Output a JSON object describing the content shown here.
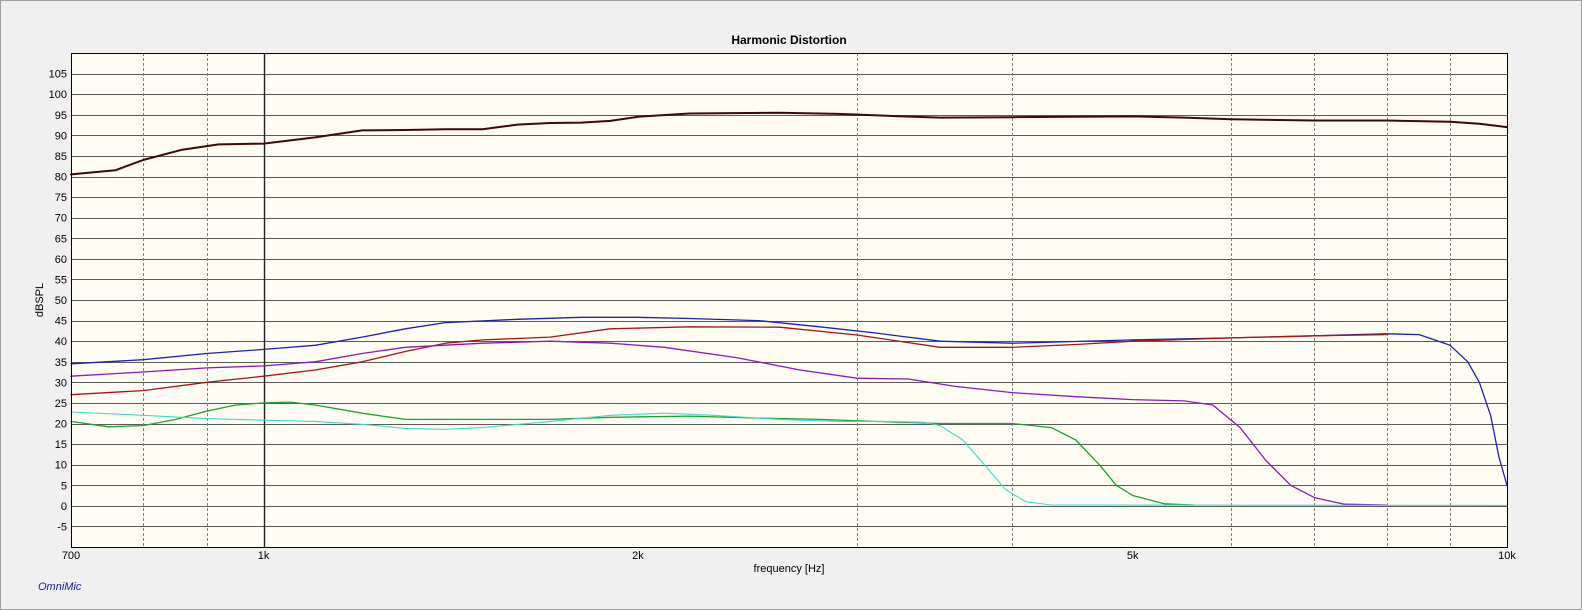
{
  "brand": "OmniMic",
  "chart_data": {
    "type": "line",
    "title": "Harmonic Distortion",
    "xlabel": "frequency [Hz]",
    "ylabel": "dBSPL",
    "xscale": "log",
    "xlim": [
      700,
      10000
    ],
    "ylim": [
      -10,
      110
    ],
    "yticks": [
      -5,
      0,
      5,
      10,
      15,
      20,
      25,
      30,
      35,
      40,
      45,
      50,
      55,
      60,
      65,
      70,
      75,
      80,
      85,
      90,
      95,
      100,
      105
    ],
    "xtick_labels": [
      {
        "value": 700,
        "label": "700"
      },
      {
        "value": 1000,
        "label": "1k"
      },
      {
        "value": 2000,
        "label": "2k"
      },
      {
        "value": 5000,
        "label": "5k"
      },
      {
        "value": 10000,
        "label": "10k"
      }
    ],
    "x_minor_grid": [
      800,
      900,
      3000,
      4000,
      6000,
      7000,
      8000,
      9000
    ],
    "x_major_grid": [
      1000
    ],
    "grid": true,
    "legend": "none",
    "series": [
      {
        "color": "#3a0a0a",
        "width": 2,
        "points": [
          [
            700,
            80.5
          ],
          [
            760,
            81.5
          ],
          [
            800,
            84
          ],
          [
            860,
            86.5
          ],
          [
            920,
            87.8
          ],
          [
            1000,
            88
          ],
          [
            1100,
            89.5
          ],
          [
            1200,
            91.2
          ],
          [
            1300,
            91.3
          ],
          [
            1400,
            91.5
          ],
          [
            1500,
            91.5
          ],
          [
            1600,
            92.6
          ],
          [
            1700,
            93
          ],
          [
            1800,
            93.1
          ],
          [
            1900,
            93.5
          ],
          [
            2000,
            94.5
          ],
          [
            2200,
            95.3
          ],
          [
            2600,
            95.5
          ],
          [
            2900,
            95.2
          ],
          [
            3200,
            94.7
          ],
          [
            3500,
            94.3
          ],
          [
            4000,
            94.4
          ],
          [
            5000,
            94.6
          ],
          [
            5500,
            94.3
          ],
          [
            6000,
            93.9
          ],
          [
            7000,
            93.6
          ],
          [
            8000,
            93.6
          ],
          [
            9000,
            93.3
          ],
          [
            9500,
            92.8
          ],
          [
            10000,
            92
          ]
        ]
      },
      {
        "color": "#2020a8",
        "width": 1.3,
        "points": [
          [
            700,
            34.5
          ],
          [
            800,
            35.5
          ],
          [
            900,
            37
          ],
          [
            1000,
            38
          ],
          [
            1100,
            39
          ],
          [
            1200,
            41
          ],
          [
            1300,
            43
          ],
          [
            1400,
            44.5
          ],
          [
            1600,
            45.3
          ],
          [
            1800,
            45.8
          ],
          [
            2000,
            45.8
          ],
          [
            2200,
            45.5
          ],
          [
            2500,
            45
          ],
          [
            2800,
            43.5
          ],
          [
            3100,
            42
          ],
          [
            3500,
            40
          ],
          [
            4000,
            39.5
          ],
          [
            5000,
            40.3
          ],
          [
            6000,
            40.8
          ],
          [
            7000,
            41.3
          ],
          [
            8000,
            41.8
          ],
          [
            8500,
            41.6
          ],
          [
            9000,
            39
          ],
          [
            9300,
            35
          ],
          [
            9500,
            30
          ],
          [
            9700,
            22
          ],
          [
            9850,
            12
          ],
          [
            10000,
            5
          ]
        ]
      },
      {
        "color": "#a01818",
        "width": 1.3,
        "points": [
          [
            700,
            27
          ],
          [
            800,
            28
          ],
          [
            900,
            30
          ],
          [
            1000,
            31.5
          ],
          [
            1100,
            33
          ],
          [
            1200,
            35
          ],
          [
            1300,
            37.5
          ],
          [
            1400,
            39.5
          ],
          [
            1500,
            40.3
          ],
          [
            1700,
            41
          ],
          [
            1900,
            43
          ],
          [
            2200,
            43.5
          ],
          [
            2600,
            43.4
          ],
          [
            3000,
            41.5
          ],
          [
            3500,
            38.5
          ],
          [
            4000,
            38.5
          ],
          [
            4500,
            39.2
          ],
          [
            5000,
            40
          ],
          [
            6000,
            40.8
          ],
          [
            7000,
            41.3
          ],
          [
            8000,
            41.6
          ]
        ]
      },
      {
        "color": "#8a1ab0",
        "width": 1.3,
        "points": [
          [
            700,
            31.5
          ],
          [
            800,
            32.5
          ],
          [
            900,
            33.5
          ],
          [
            1000,
            34
          ],
          [
            1100,
            35
          ],
          [
            1200,
            37
          ],
          [
            1300,
            38.5
          ],
          [
            1500,
            39.5
          ],
          [
            1700,
            40
          ],
          [
            1900,
            39.5
          ],
          [
            2100,
            38.5
          ],
          [
            2400,
            36
          ],
          [
            2700,
            33
          ],
          [
            3000,
            31
          ],
          [
            3300,
            30.8
          ],
          [
            3600,
            29
          ],
          [
            4000,
            27.5
          ],
          [
            4500,
            26.5
          ],
          [
            5000,
            25.8
          ],
          [
            5500,
            25.5
          ],
          [
            5800,
            24.5
          ],
          [
            6100,
            19
          ],
          [
            6400,
            11
          ],
          [
            6700,
            5
          ],
          [
            7000,
            2
          ],
          [
            7400,
            0.4
          ],
          [
            8000,
            0.2
          ]
        ]
      },
      {
        "color": "#1ea030",
        "width": 1.3,
        "points": [
          [
            700,
            20.5
          ],
          [
            750,
            19.2
          ],
          [
            800,
            19.5
          ],
          [
            850,
            21
          ],
          [
            900,
            23
          ],
          [
            950,
            24.5
          ],
          [
            1000,
            25
          ],
          [
            1050,
            25.2
          ],
          [
            1100,
            24.5
          ],
          [
            1200,
            22.5
          ],
          [
            1300,
            21
          ],
          [
            1500,
            21
          ],
          [
            1700,
            21
          ],
          [
            1900,
            21.5
          ],
          [
            2200,
            21.8
          ],
          [
            2500,
            21.3
          ],
          [
            2800,
            21
          ],
          [
            3100,
            20.5
          ],
          [
            3500,
            20
          ],
          [
            4000,
            20
          ],
          [
            4300,
            19
          ],
          [
            4500,
            16
          ],
          [
            4700,
            10
          ],
          [
            4850,
            5
          ],
          [
            5000,
            2.5
          ],
          [
            5300,
            0.5
          ],
          [
            5600,
            0.2
          ]
        ]
      },
      {
        "color": "#40d8d0",
        "width": 1.1,
        "points": [
          [
            700,
            22.8
          ],
          [
            800,
            22
          ],
          [
            900,
            21.2
          ],
          [
            1000,
            20.8
          ],
          [
            1100,
            20.5
          ],
          [
            1200,
            19.8
          ],
          [
            1300,
            18.8
          ],
          [
            1400,
            18.6
          ],
          [
            1500,
            19
          ],
          [
            1700,
            20.5
          ],
          [
            1900,
            22
          ],
          [
            2100,
            22.5
          ],
          [
            2300,
            22
          ],
          [
            2600,
            21
          ],
          [
            2900,
            20.5
          ],
          [
            3200,
            20.5
          ],
          [
            3400,
            20.3
          ],
          [
            3500,
            19.5
          ],
          [
            3650,
            16
          ],
          [
            3800,
            10
          ],
          [
            3950,
            4
          ],
          [
            4100,
            1
          ],
          [
            4300,
            0.2
          ],
          [
            10000,
            0.1
          ]
        ]
      }
    ]
  }
}
